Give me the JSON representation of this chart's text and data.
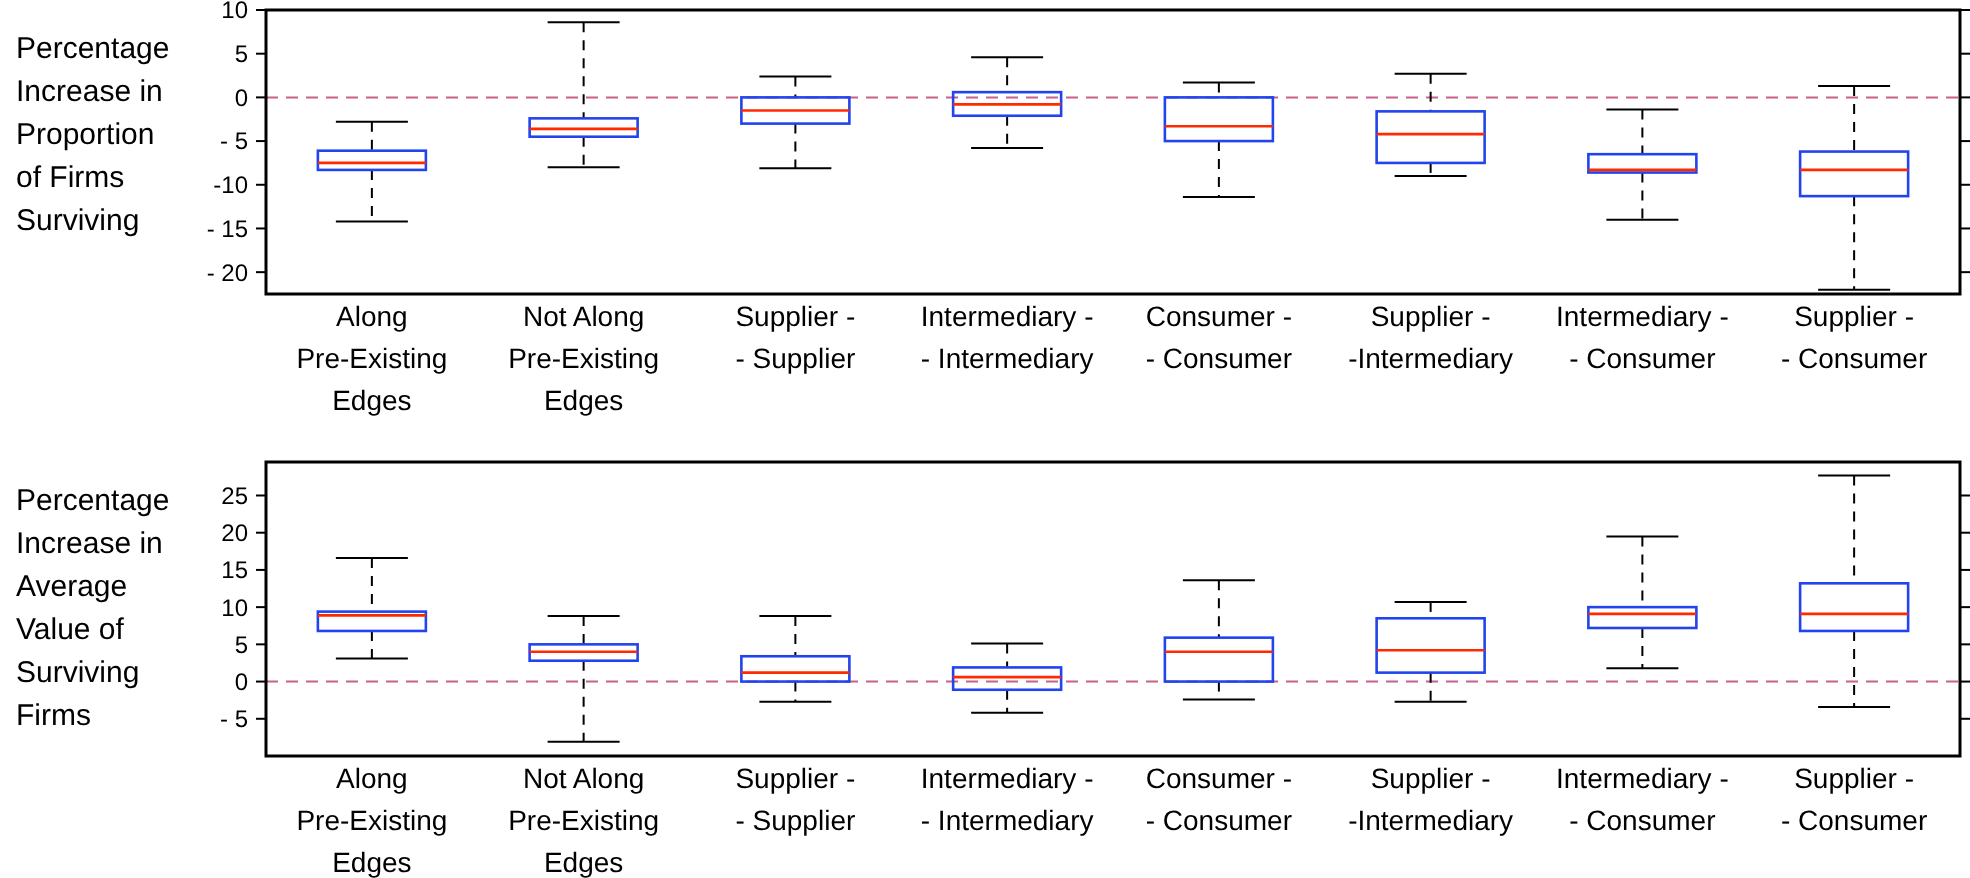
{
  "chart_data": [
    {
      "type": "box",
      "ylabel": "Percentage\nIncrease in\nProportion\nof Firms\nSurviving",
      "categories": [
        "Along\nPre-Existing\nEdges",
        "Not Along\nPre-Existing\nEdges",
        "Supplier -\n- Supplier",
        "Intermediary -\n- Intermediary",
        "Consumer -\n- Consumer",
        "Supplier -\n-Intermediary",
        "Intermediary -\n- Consumer",
        "Supplier -\n- Consumer"
      ],
      "ylim": [
        -22.5,
        10
      ],
      "yticks": [
        10,
        5,
        0,
        {
          "value": -5,
          "label": "- 5"
        },
        -10,
        {
          "value": -15,
          "label": "- 15"
        },
        {
          "value": -20,
          "label": "- 20"
        }
      ],
      "grid": false,
      "ref_lines": [
        {
          "axis": "y",
          "value": 0,
          "color": "#c8608a",
          "line_style": "dashed"
        }
      ],
      "series": [
        {
          "color": "#2244ee",
          "boxes": [
            {
              "low": -14.2,
              "q1": -8.3,
              "median": -7.5,
              "q3": -6.1,
              "high": -2.8
            },
            {
              "low": -8,
              "q1": -4.5,
              "median": -3.6,
              "q3": -2.4,
              "high": 8.6
            },
            {
              "low": -8.1,
              "q1": -3,
              "median": -1.5,
              "q3": 0,
              "high": 2.4
            },
            {
              "low": -5.8,
              "q1": -2.1,
              "median": -0.8,
              "q3": 0.6,
              "high": 4.6
            },
            {
              "low": -11.4,
              "q1": -5,
              "median": -3.3,
              "q3": 0,
              "high": 1.7
            },
            {
              "low": -9,
              "q1": -7.5,
              "median": -4.2,
              "q3": -1.6,
              "high": 2.7
            },
            {
              "low": -14,
              "q1": -8.6,
              "median": -8.3,
              "q3": -6.5,
              "high": -1.4
            },
            {
              "low": -22,
              "q1": -11.3,
              "median": -8.3,
              "q3": -6.2,
              "high": 1.3
            }
          ]
        }
      ]
    },
    {
      "type": "box",
      "ylabel": "Percentage\nIncrease in\nAverage\nValue of\nSurviving\nFirms",
      "categories": [
        "Along\nPre-Existing\nEdges",
        "Not Along\nPre-Existing\nEdges",
        "Supplier -\n- Supplier",
        "Intermediary -\n- Intermediary",
        "Consumer -\n- Consumer",
        "Supplier -\n-Intermediary",
        "Intermediary -\n- Consumer",
        "Supplier -\n- Consumer"
      ],
      "ylim": [
        -10,
        29.5
      ],
      "yticks": [
        25,
        20,
        15,
        10,
        5,
        0,
        {
          "value": -5,
          "label": "- 5"
        }
      ],
      "grid": false,
      "ref_lines": [
        {
          "axis": "y",
          "value": 0,
          "color": "#c8608a",
          "line_style": "dashed"
        }
      ],
      "series": [
        {
          "color": "#2244ee",
          "boxes": [
            {
              "low": 3.1,
              "q1": 6.8,
              "median": 8.9,
              "q3": 9.4,
              "high": 16.6
            },
            {
              "low": -8.1,
              "q1": 2.8,
              "median": 4,
              "q3": 5,
              "high": 8.8
            },
            {
              "low": -2.7,
              "q1": 0,
              "median": 1.2,
              "q3": 3.4,
              "high": 8.8
            },
            {
              "low": -4.2,
              "q1": -1.1,
              "median": 0.6,
              "q3": 1.9,
              "high": 5.1
            },
            {
              "low": -2.4,
              "q1": 0,
              "median": 4,
              "q3": 5.9,
              "high": 13.6
            },
            {
              "low": -2.7,
              "q1": 1.2,
              "median": 4.2,
              "q3": 8.5,
              "high": 10.7
            },
            {
              "low": 1.8,
              "q1": 7.2,
              "median": 9.1,
              "q3": 10,
              "high": 19.5
            },
            {
              "low": -3.4,
              "q1": 6.8,
              "median": 9.1,
              "q3": 13.2,
              "high": 27.7
            }
          ]
        }
      ]
    }
  ]
}
